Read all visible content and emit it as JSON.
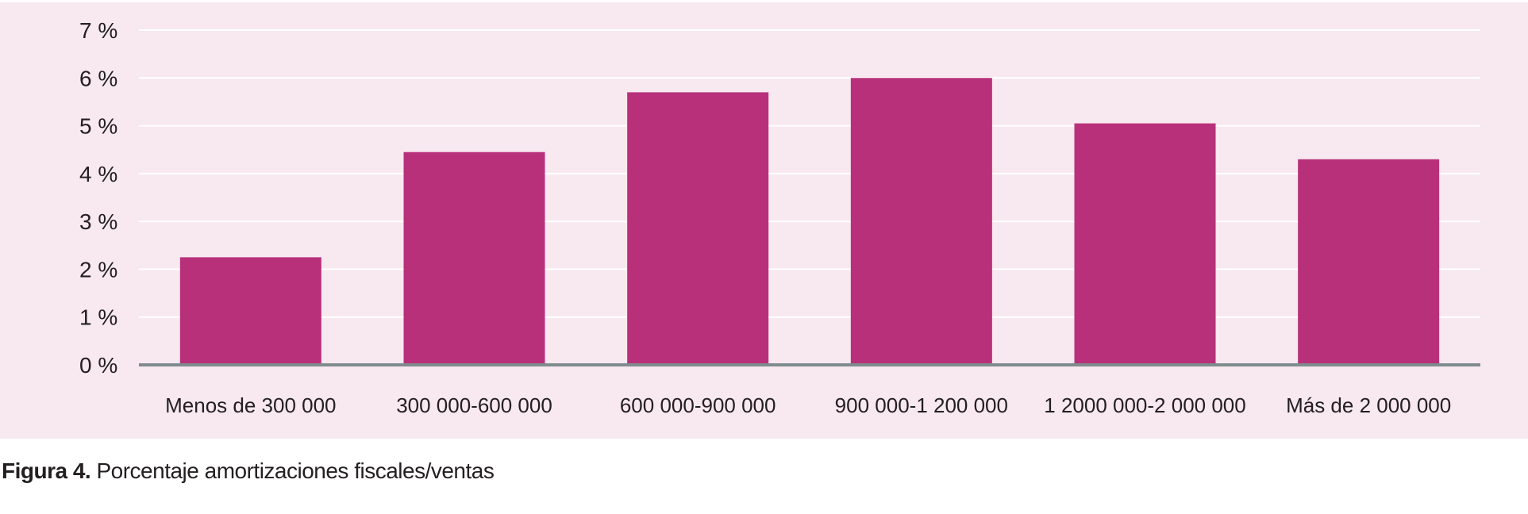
{
  "caption": {
    "label": "Figura 4.",
    "text": "Porcentaje amortizaciones fiscales/ventas"
  },
  "colors": {
    "panel_background": "#f8e8f0",
    "bar": "#b8307a",
    "gridline": "#ffffff",
    "baseline": "#7f8c8d",
    "text": "#231f20"
  },
  "chart_data": {
    "type": "bar",
    "title": "",
    "xlabel": "",
    "ylabel": "",
    "categories": [
      "Menos de 300 000",
      "300 000-600 000",
      "600 000-900 000",
      "900 000-1 200 000",
      "1 2000 000-2 000 000",
      "Más de 2 000 000"
    ],
    "values": [
      2.25,
      4.45,
      5.7,
      6.0,
      5.05,
      4.3
    ],
    "ylim": [
      0,
      7
    ],
    "yticks": [
      0,
      1,
      2,
      3,
      4,
      5,
      6,
      7
    ],
    "ytick_labels": [
      "0 %",
      "1 %",
      "2 %",
      "3 %",
      "4 %",
      "5 %",
      "6 %",
      "7 %"
    ],
    "grid": true,
    "legend": "none"
  }
}
